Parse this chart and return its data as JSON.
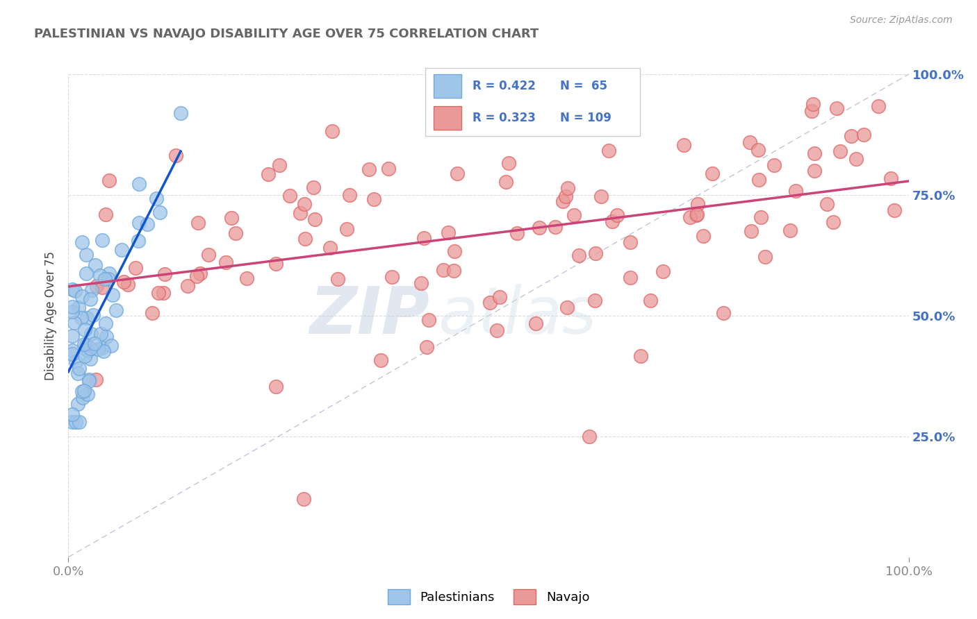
{
  "title": "PALESTINIAN VS NAVAJO DISABILITY AGE OVER 75 CORRELATION CHART",
  "source_text": "Source: ZipAtlas.com",
  "ylabel": "Disability Age Over 75",
  "xlim": [
    0,
    1
  ],
  "ylim": [
    0,
    1
  ],
  "palestinian_color": "#9fc5e8",
  "navajo_color": "#ea9999",
  "palestinian_edge": "#6fa8dc",
  "navajo_edge": "#e06666",
  "trend_blue": "#1155cc",
  "trend_pink": "#cc4477",
  "diag_color": "#b0b8d0",
  "R_palestinian": 0.422,
  "N_palestinian": 65,
  "R_navajo": 0.323,
  "N_navajo": 109,
  "legend_label_1": "Palestinians",
  "legend_label_2": "Navajo",
  "watermark_zip": "ZIP",
  "watermark_atlas": "atlas",
  "grid_color": "#d8d8d8",
  "title_color": "#666666",
  "source_color": "#999999",
  "axis_label_color": "#444444",
  "tick_color": "#888888",
  "right_tick_color": "#4472c4",
  "legend_text_color": "#222222",
  "legend_rn_color": "#4472c4"
}
